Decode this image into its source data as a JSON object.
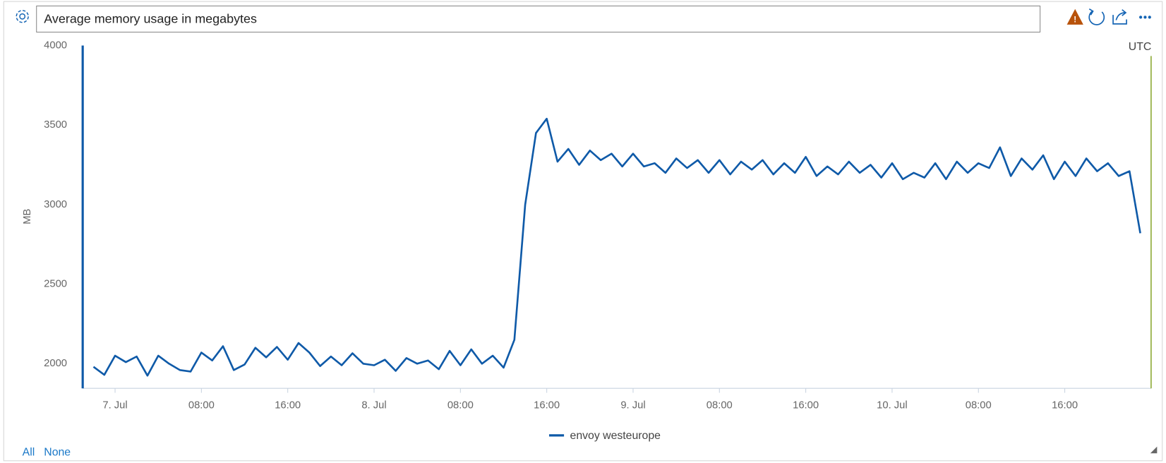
{
  "chart_data": {
    "type": "line",
    "title": "Average memory usage in megabytes",
    "y_label": "MB",
    "timezone": "UTC",
    "legend_actions": [
      "All",
      "None"
    ],
    "x": [
      "07-06 22:00",
      "07-06 23:00",
      "07-07 00:00",
      "07-07 01:00",
      "07-07 02:00",
      "07-07 03:00",
      "07-07 04:00",
      "07-07 05:00",
      "07-07 06:00",
      "07-07 07:00",
      "07-07 08:00",
      "07-07 09:00",
      "07-07 10:00",
      "07-07 11:00",
      "07-07 12:00",
      "07-07 13:00",
      "07-07 14:00",
      "07-07 15:00",
      "07-07 16:00",
      "07-07 17:00",
      "07-07 18:00",
      "07-07 19:00",
      "07-07 20:00",
      "07-07 21:00",
      "07-07 22:00",
      "07-07 23:00",
      "07-08 00:00",
      "07-08 01:00",
      "07-08 02:00",
      "07-08 03:00",
      "07-08 04:00",
      "07-08 05:00",
      "07-08 06:00",
      "07-08 07:00",
      "07-08 08:00",
      "07-08 09:00",
      "07-08 10:00",
      "07-08 11:00",
      "07-08 12:00",
      "07-08 13:00",
      "07-08 14:00",
      "07-08 15:00",
      "07-08 16:00",
      "07-08 17:00",
      "07-08 18:00",
      "07-08 19:00",
      "07-08 20:00",
      "07-08 21:00",
      "07-08 22:00",
      "07-08 23:00",
      "07-09 00:00",
      "07-09 01:00",
      "07-09 02:00",
      "07-09 03:00",
      "07-09 04:00",
      "07-09 05:00",
      "07-09 06:00",
      "07-09 07:00",
      "07-09 08:00",
      "07-09 09:00",
      "07-09 10:00",
      "07-09 11:00",
      "07-09 12:00",
      "07-09 13:00",
      "07-09 14:00",
      "07-09 15:00",
      "07-09 16:00",
      "07-09 17:00",
      "07-09 18:00",
      "07-09 19:00",
      "07-09 20:00",
      "07-09 21:00",
      "07-09 22:00",
      "07-09 23:00",
      "07-10 00:00",
      "07-10 01:00",
      "07-10 02:00",
      "07-10 03:00",
      "07-10 04:00",
      "07-10 05:00",
      "07-10 06:00",
      "07-10 07:00",
      "07-10 08:00",
      "07-10 09:00",
      "07-10 10:00",
      "07-10 11:00",
      "07-10 12:00",
      "07-10 13:00",
      "07-10 14:00",
      "07-10 15:00",
      "07-10 16:00",
      "07-10 17:00",
      "07-10 18:00",
      "07-10 19:00",
      "07-10 20:00",
      "07-10 21:00",
      "07-10 22:00",
      "07-10 23:00"
    ],
    "series": [
      {
        "name": "envoy westeurope",
        "color": "#0f5aa8",
        "values": [
          1980,
          1930,
          2050,
          2010,
          2045,
          1925,
          2050,
          2000,
          1960,
          1950,
          2070,
          2020,
          2110,
          1960,
          1995,
          2100,
          2040,
          2105,
          2025,
          2130,
          2070,
          1985,
          2045,
          1990,
          2065,
          2000,
          1990,
          2025,
          1955,
          2035,
          2000,
          2020,
          1965,
          2080,
          1990,
          2090,
          2000,
          2050,
          1975,
          2150,
          3000,
          3450,
          3540,
          3270,
          3350,
          3250,
          3340,
          3280,
          3320,
          3240,
          3320,
          3240,
          3260,
          3200,
          3290,
          3230,
          3280,
          3200,
          3280,
          3190,
          3270,
          3220,
          3280,
          3190,
          3260,
          3200,
          3300,
          3180,
          3240,
          3190,
          3270,
          3200,
          3250,
          3170,
          3260,
          3160,
          3200,
          3170,
          3260,
          3160,
          3270,
          3200,
          3260,
          3230,
          3360,
          3180,
          3290,
          3220,
          3310,
          3160,
          3270,
          3180,
          3290,
          3210,
          3260,
          3180,
          3210,
          2820
        ]
      }
    ],
    "xlim": [
      "07-06 21:00",
      "07-11 00:00"
    ],
    "xticks": [
      {
        "value": "07-07 00:00",
        "label": "7. Jul"
      },
      {
        "value": "07-07 08:00",
        "label": "08:00"
      },
      {
        "value": "07-07 16:00",
        "label": "16:00"
      },
      {
        "value": "07-08 00:00",
        "label": "8. Jul"
      },
      {
        "value": "07-08 08:00",
        "label": "08:00"
      },
      {
        "value": "07-08 16:00",
        "label": "16:00"
      },
      {
        "value": "07-09 00:00",
        "label": "9. Jul"
      },
      {
        "value": "07-09 08:00",
        "label": "08:00"
      },
      {
        "value": "07-09 16:00",
        "label": "16:00"
      },
      {
        "value": "07-10 00:00",
        "label": "10. Jul"
      },
      {
        "value": "07-10 08:00",
        "label": "08:00"
      },
      {
        "value": "07-10 16:00",
        "label": "16:00"
      }
    ],
    "ylim": [
      1845,
      4000
    ],
    "yticks": [
      2000,
      2500,
      3000,
      3500,
      4000
    ],
    "grid": false
  }
}
